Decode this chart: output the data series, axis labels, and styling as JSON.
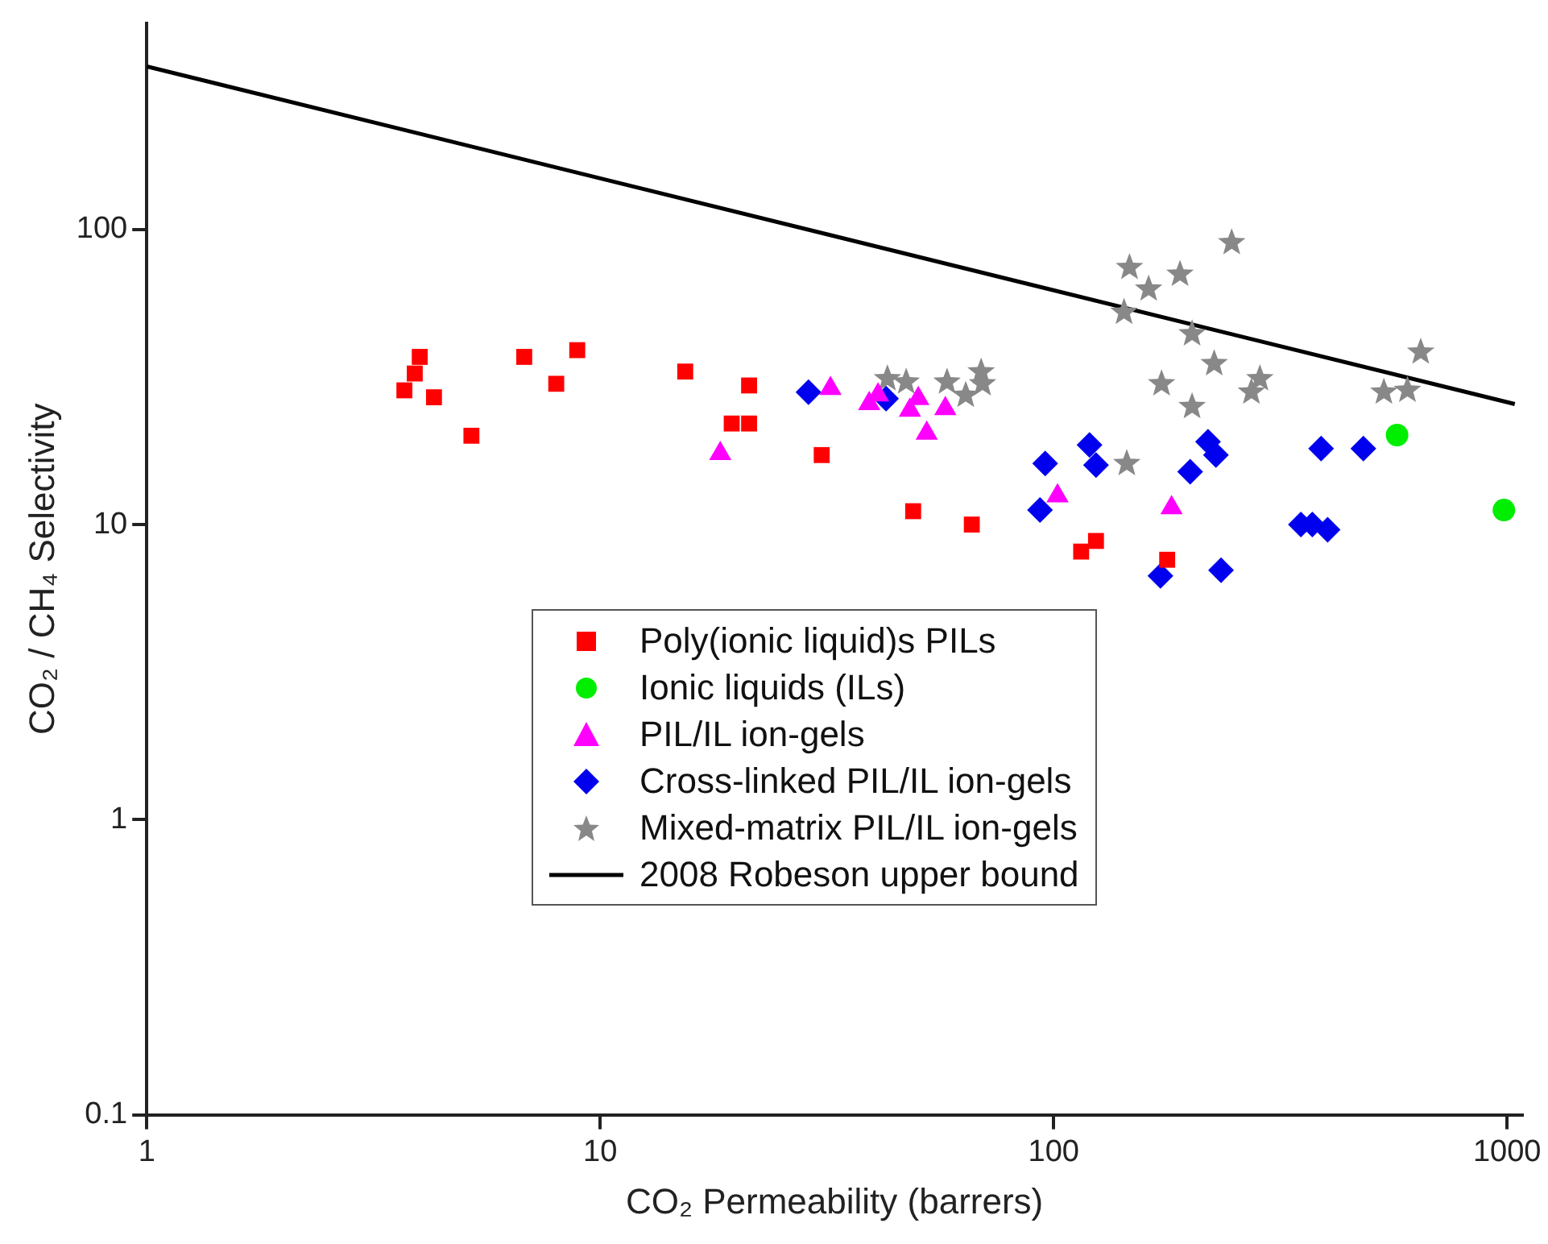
{
  "chart_data": {
    "type": "scatter",
    "xlabel": "CO₂ Permeability (barrers)",
    "ylabel": "CO₂ / CH₄ Selectivity",
    "log": "xy",
    "grid": false,
    "legend": "bottom",
    "xlim": [
      1,
      1080
    ],
    "ylim": [
      0.1,
      500
    ],
    "xticks": [
      1,
      10,
      100,
      1000
    ],
    "yticks": [
      0.1,
      1,
      10,
      100
    ],
    "series": [
      {
        "name": "Poly(ionic liquid)s PILs",
        "marker": "square",
        "color": "#ff0000",
        "x": [
          3.7,
          3.9,
          4.0,
          4.3,
          5.2,
          6.8,
          8.0,
          8.9,
          15.4,
          19.5,
          21.3,
          21.3,
          30.8,
          49,
          66,
          115,
          124,
          178
        ],
        "values": [
          28.5,
          32.5,
          37,
          27,
          20,
          37,
          30,
          39,
          33,
          22,
          22,
          29.6,
          17.2,
          11.1,
          10,
          8.1,
          8.8,
          7.6
        ]
      },
      {
        "name": "Ionic liquids (ILs)",
        "marker": "circle",
        "color": "#00ee00",
        "x": [
          572,
          984
        ],
        "values": [
          20.1,
          11.2
        ]
      },
      {
        "name": "PIL/IL ion-gels",
        "marker": "triangle",
        "color": "#ff00ff",
        "x": [
          18.4,
          32.2,
          39.2,
          41,
          48.2,
          50.3,
          52.5,
          57.7,
          102,
          182
        ],
        "values": [
          17.4,
          28.9,
          25.7,
          27.5,
          24.4,
          26.7,
          20.4,
          24.7,
          12.5,
          11.4
        ]
      },
      {
        "name": "Cross-linked PIL/IL ion-gels",
        "marker": "diamond",
        "color": "#0000ee",
        "x": [
          28.8,
          42.7,
          95.8,
          93.3,
          120,
          124,
          172,
          200,
          219,
          228,
          234,
          389,
          482,
          351,
          372,
          402
        ],
        "values": [
          28.1,
          26.7,
          16.1,
          11.2,
          18.6,
          15.9,
          6.7,
          15.1,
          19.1,
          17.2,
          7.0,
          18.1,
          18.1,
          10.0,
          10.0,
          9.6
        ]
      },
      {
        "name": "Mixed-matrix PIL/IL ion-gels",
        "marker": "star",
        "color": "#888888",
        "x": [
          43,
          47.3,
          58.2,
          64,
          69.2,
          69.7,
          147,
          162,
          143,
          190,
          247,
          202,
          226,
          173,
          202,
          285,
          273,
          145,
          645,
          535,
          603
        ],
        "values": [
          31.2,
          30.4,
          30.4,
          27.4,
          32.9,
          30,
          74.3,
          62.8,
          52.4,
          70.5,
          90.2,
          44.3,
          35.1,
          30,
          25.1,
          31.2,
          28.1,
          16.1,
          38.4,
          28.1,
          28.5
        ]
      },
      {
        "name": "2008 Robeson upper bound",
        "type": "line",
        "marker": "none",
        "line_style": "solid",
        "color": "#000000",
        "x": [
          1,
          1040
        ],
        "values": [
          357,
          25.6
        ]
      }
    ]
  }
}
